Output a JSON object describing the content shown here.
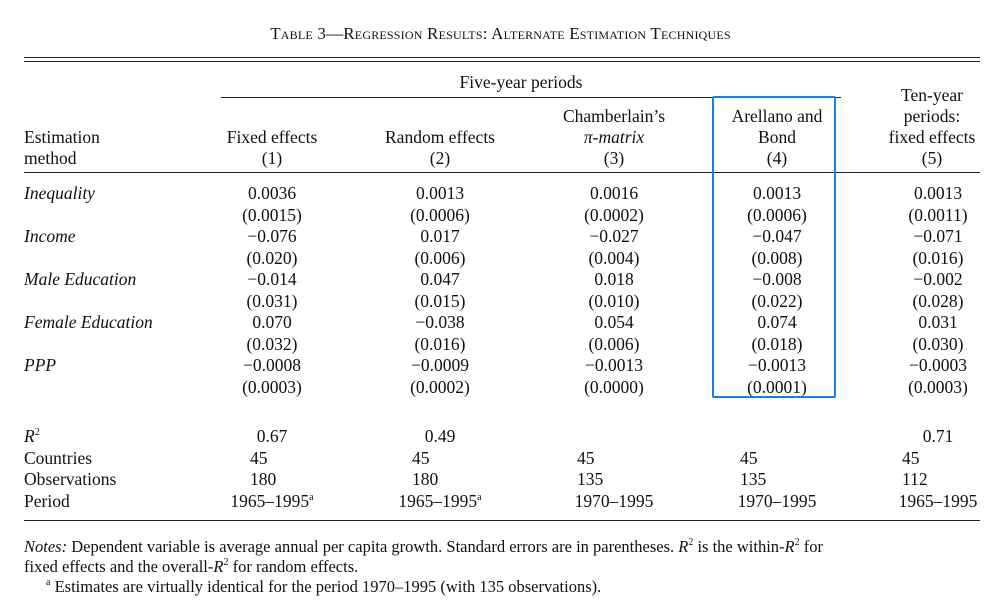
{
  "table": {
    "title": "Table 3—Regression Results: Alternate Estimation Techniques",
    "group_header": "Five-year periods",
    "stub_header": [
      "Estimation",
      "method"
    ],
    "columns": [
      {
        "lines": [
          "Fixed effects",
          "(1)"
        ]
      },
      {
        "lines": [
          "Random effects",
          "(2)"
        ]
      },
      {
        "lines": [
          "Chamberlain’s",
          "π-matrix",
          "(3)"
        ]
      },
      {
        "lines": [
          "Arellano and",
          "Bond",
          "(4)"
        ]
      },
      {
        "lines": [
          "Ten-year",
          "periods:",
          "fixed effects",
          "(5)"
        ]
      }
    ],
    "rows": [
      {
        "label": "Inequality",
        "est": [
          "0.0036",
          "0.0013",
          "0.0016",
          "0.0013",
          "0.0013"
        ],
        "se": [
          "(0.0015)",
          "(0.0006)",
          "(0.0002)",
          "(0.0006)",
          "(0.0011)"
        ]
      },
      {
        "label": "Income",
        "est": [
          "−0.076",
          "0.017",
          "−0.027",
          "−0.047",
          "−0.071"
        ],
        "se": [
          "(0.020)",
          "(0.006)",
          "(0.004)",
          "(0.008)",
          "(0.016)"
        ]
      },
      {
        "label": "Male Education",
        "est": [
          "−0.014",
          "0.047",
          "0.018",
          "−0.008",
          "−0.002"
        ],
        "se": [
          "(0.031)",
          "(0.015)",
          "(0.010)",
          "(0.022)",
          "(0.028)"
        ]
      },
      {
        "label": "Female Education",
        "est": [
          "0.070",
          "−0.038",
          "0.054",
          "0.074",
          "0.031"
        ],
        "se": [
          "(0.032)",
          "(0.016)",
          "(0.006)",
          "(0.018)",
          "(0.030)"
        ]
      },
      {
        "label": "PPP",
        "est": [
          "−0.0008",
          "−0.0009",
          "−0.0013",
          "−0.0013",
          "−0.0003"
        ],
        "se": [
          "(0.0003)",
          "(0.0002)",
          "(0.0000)",
          "(0.0001)",
          "(0.0003)"
        ]
      }
    ],
    "stats": [
      {
        "label_base": "R",
        "label_sup": "2",
        "values": [
          "0.67",
          "0.49",
          "",
          "",
          "0.71"
        ]
      },
      {
        "label_base": "Countries",
        "label_sup": "",
        "values": [
          "45",
          "45",
          "45",
          "45",
          "45"
        ]
      },
      {
        "label_base": "Observations",
        "label_sup": "",
        "values": [
          "180",
          "180",
          "135",
          "135",
          "112"
        ]
      },
      {
        "label_base": "Period",
        "label_sup": "",
        "values": [
          "1965–1995",
          "1965–1995",
          "1970–1995",
          "1970–1995",
          "1965–1995"
        ],
        "sups": [
          "a",
          "a",
          "",
          "",
          ""
        ]
      }
    ],
    "notes": {
      "lead": "Notes:",
      "line1_a": " Dependent variable is average annual per capita growth. Standard errors are in parentheses. ",
      "line1_r": "R",
      "line1_sup": "2",
      "line1_b": " is the within-",
      "line1_r2": "R",
      "line1_sup2": "2",
      "line1_c": " for",
      "line2_a": "fixed effects and the overall-",
      "line2_r": "R",
      "line2_sup": "2",
      "line2_b": " for random effects.",
      "footnote_mark": "a",
      "footnote_text": " Estimates are virtually identical for the period 1970–1995 (with 135 observations)."
    },
    "highlight_color": "#1a7fe0"
  }
}
